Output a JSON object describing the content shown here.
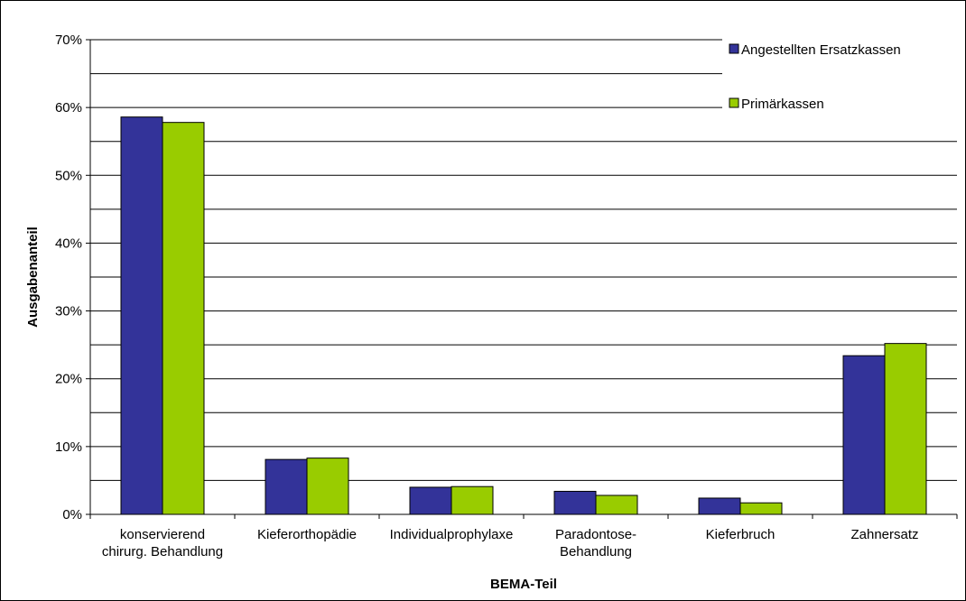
{
  "chart_data": {
    "type": "bar",
    "title": "",
    "xlabel": "BEMA-Teil",
    "ylabel": "Ausgabenanteil",
    "ylim": [
      0,
      0.7
    ],
    "ytick_values": [
      0,
      0.1,
      0.2,
      0.3,
      0.4,
      0.5,
      0.6,
      0.7
    ],
    "ytick_labels": [
      "0%",
      "10%",
      "20%",
      "30%",
      "40%",
      "50%",
      "60%",
      "70%"
    ],
    "grid": true,
    "legend_position": "top-right",
    "categories": [
      [
        "konservierend",
        "chirurg. Behandlung"
      ],
      [
        "Kieferorthopädie"
      ],
      [
        "Individualprophylaxe"
      ],
      [
        "Paradontose-",
        "Behandlung"
      ],
      [
        "Kieferbruch"
      ],
      [
        "Zahnersatz"
      ]
    ],
    "series": [
      {
        "name": "Angestellten Ersatzkassen",
        "color": "#333399",
        "values": [
          0.586,
          0.081,
          0.04,
          0.034,
          0.024,
          0.234
        ]
      },
      {
        "name": "Primärkassen",
        "color": "#99cc00",
        "values": [
          0.578,
          0.083,
          0.041,
          0.028,
          0.017,
          0.252
        ]
      }
    ]
  }
}
